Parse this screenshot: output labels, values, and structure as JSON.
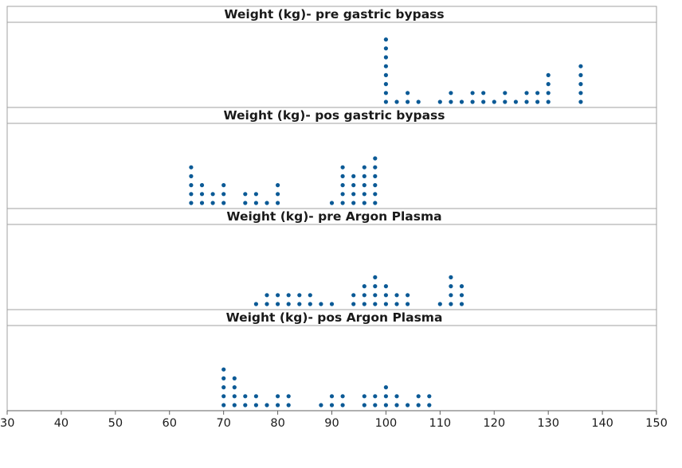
{
  "chart_data": {
    "type": "scatter",
    "subtype": "dotplot",
    "xlim": [
      30,
      150
    ],
    "x_ticks": [
      30,
      40,
      50,
      60,
      70,
      80,
      90,
      100,
      110,
      120,
      130,
      140,
      150
    ],
    "dot_color": "#0b5a96",
    "grid": false,
    "panels": [
      {
        "title": "Weight (kg)- pre gastric bypass",
        "stacks": [
          {
            "x": 100,
            "count": 8
          },
          {
            "x": 102,
            "count": 1
          },
          {
            "x": 104,
            "count": 2
          },
          {
            "x": 106,
            "count": 1
          },
          {
            "x": 110,
            "count": 1
          },
          {
            "x": 112,
            "count": 2
          },
          {
            "x": 114,
            "count": 1
          },
          {
            "x": 116,
            "count": 2
          },
          {
            "x": 118,
            "count": 2
          },
          {
            "x": 120,
            "count": 1
          },
          {
            "x": 122,
            "count": 2
          },
          {
            "x": 124,
            "count": 1
          },
          {
            "x": 126,
            "count": 2
          },
          {
            "x": 128,
            "count": 2
          },
          {
            "x": 130,
            "count": 4
          },
          {
            "x": 136,
            "count": 5
          }
        ]
      },
      {
        "title": "Weight (kg)- pos gastric bypass",
        "stacks": [
          {
            "x": 64,
            "count": 5
          },
          {
            "x": 66,
            "count": 3
          },
          {
            "x": 68,
            "count": 2
          },
          {
            "x": 70,
            "count": 3
          },
          {
            "x": 74,
            "count": 2
          },
          {
            "x": 76,
            "count": 2
          },
          {
            "x": 78,
            "count": 1
          },
          {
            "x": 80,
            "count": 3
          },
          {
            "x": 90,
            "count": 1
          },
          {
            "x": 92,
            "count": 5
          },
          {
            "x": 94,
            "count": 4
          },
          {
            "x": 96,
            "count": 5
          },
          {
            "x": 98,
            "count": 6
          }
        ]
      },
      {
        "title": "Weight (kg)- pre Argon Plasma",
        "stacks": [
          {
            "x": 76,
            "count": 1
          },
          {
            "x": 78,
            "count": 2
          },
          {
            "x": 80,
            "count": 2
          },
          {
            "x": 82,
            "count": 2
          },
          {
            "x": 84,
            "count": 2
          },
          {
            "x": 86,
            "count": 2
          },
          {
            "x": 88,
            "count": 1
          },
          {
            "x": 90,
            "count": 1
          },
          {
            "x": 94,
            "count": 2
          },
          {
            "x": 96,
            "count": 3
          },
          {
            "x": 98,
            "count": 4
          },
          {
            "x": 100,
            "count": 3
          },
          {
            "x": 102,
            "count": 2
          },
          {
            "x": 104,
            "count": 2
          },
          {
            "x": 110,
            "count": 1
          },
          {
            "x": 112,
            "count": 4
          },
          {
            "x": 114,
            "count": 3
          }
        ]
      },
      {
        "title": "Weight (kg)- pos Argon Plasma",
        "stacks": [
          {
            "x": 70,
            "count": 5
          },
          {
            "x": 72,
            "count": 4
          },
          {
            "x": 74,
            "count": 2
          },
          {
            "x": 76,
            "count": 2
          },
          {
            "x": 78,
            "count": 1
          },
          {
            "x": 80,
            "count": 2
          },
          {
            "x": 82,
            "count": 2
          },
          {
            "x": 88,
            "count": 1
          },
          {
            "x": 90,
            "count": 2
          },
          {
            "x": 92,
            "count": 2
          },
          {
            "x": 96,
            "count": 2
          },
          {
            "x": 98,
            "count": 2
          },
          {
            "x": 100,
            "count": 3
          },
          {
            "x": 102,
            "count": 2
          },
          {
            "x": 104,
            "count": 1
          },
          {
            "x": 106,
            "count": 2
          },
          {
            "x": 108,
            "count": 2
          }
        ]
      }
    ]
  }
}
